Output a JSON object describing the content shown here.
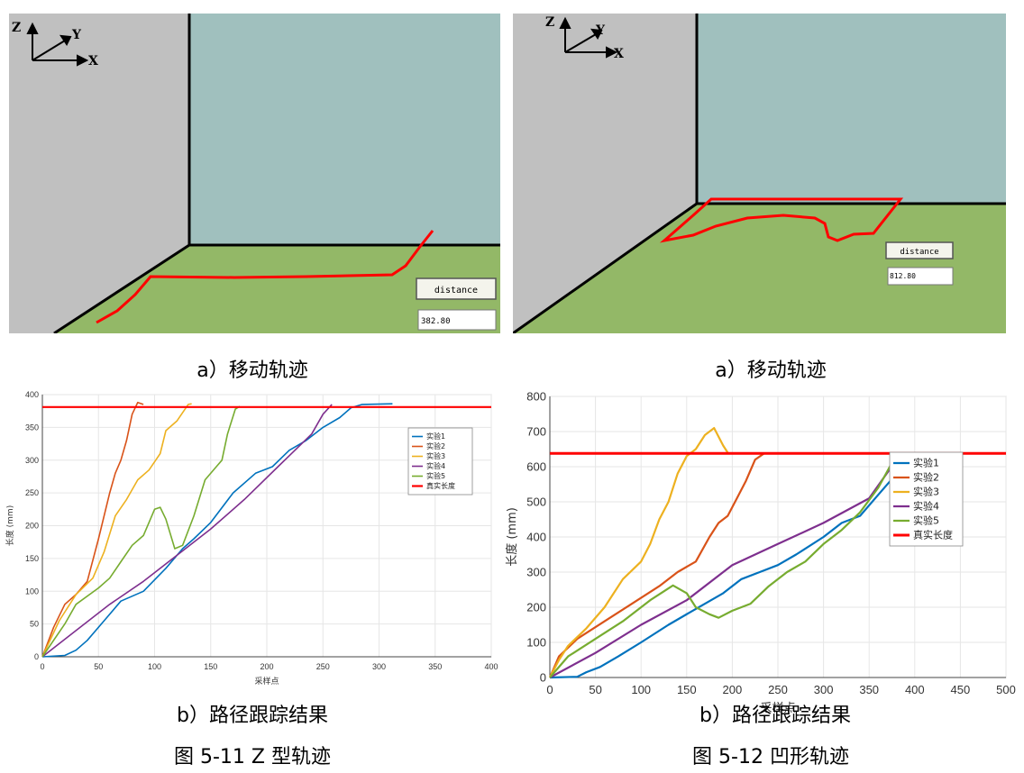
{
  "captions": {
    "left_scene": "a）移动轨迹",
    "right_scene": "a）移动轨迹",
    "left_plot": "b）路径跟踪结果",
    "right_plot": "b）路径跟踪结果",
    "left_figure": "图 5-11 Z 型轨迹",
    "right_figure": "图 5-12  凹形轨迹"
  },
  "scenes": [
    {
      "axes": {
        "z": "Z",
        "y": "Y",
        "x": "X"
      },
      "button_label": "distance",
      "value": "382.80"
    },
    {
      "axes": {
        "z": "Z",
        "y": "Y",
        "x": "X"
      },
      "button_label": "distance",
      "value": "812.80"
    }
  ],
  "colors": {
    "wall_left": "#c0c0c0",
    "wall_back": "#a0c0be",
    "floor": "#93b867",
    "path": "#ff0000",
    "s1": "#0072bd",
    "s2": "#d95319",
    "s3": "#edb120",
    "s4": "#7e2f8e",
    "s5": "#77ac30",
    "truth": "#ff0000"
  },
  "chart_data": [
    {
      "type": "line",
      "xlabel": "采样点",
      "ylabel": "长度 (mm)",
      "xlim": [
        0,
        400
      ],
      "ylim": [
        0,
        400
      ],
      "xticks": [
        "0",
        "50",
        "100",
        "150",
        "200",
        "250",
        "300",
        "350",
        "400"
      ],
      "yticks": [
        "0",
        "50",
        "100",
        "150",
        "200",
        "250",
        "300",
        "350",
        "400"
      ],
      "legend": [
        "实验1",
        "实验2",
        "实验3",
        "实验4",
        "实验5",
        "真实长度"
      ],
      "series": [
        {
          "name": "实验1",
          "points": [
            [
              0,
              0
            ],
            [
              20,
              2
            ],
            [
              30,
              10
            ],
            [
              40,
              25
            ],
            [
              55,
              55
            ],
            [
              70,
              85
            ],
            [
              90,
              100
            ],
            [
              110,
              135
            ],
            [
              125,
              165
            ],
            [
              135,
              180
            ],
            [
              150,
              205
            ],
            [
              170,
              250
            ],
            [
              190,
              280
            ],
            [
              205,
              290
            ],
            [
              220,
              315
            ],
            [
              235,
              330
            ],
            [
              250,
              350
            ],
            [
              265,
              365
            ],
            [
              275,
              380
            ],
            [
              285,
              385
            ],
            [
              312,
              386
            ]
          ]
        },
        {
          "name": "实验2",
          "points": [
            [
              0,
              0
            ],
            [
              10,
              45
            ],
            [
              20,
              80
            ],
            [
              30,
              95
            ],
            [
              40,
              115
            ],
            [
              50,
              180
            ],
            [
              60,
              250
            ],
            [
              65,
              280
            ],
            [
              70,
              300
            ],
            [
              75,
              330
            ],
            [
              80,
              370
            ],
            [
              85,
              388
            ],
            [
              90,
              385
            ]
          ]
        },
        {
          "name": "实验3",
          "points": [
            [
              0,
              0
            ],
            [
              15,
              55
            ],
            [
              30,
              95
            ],
            [
              45,
              120
            ],
            [
              55,
              160
            ],
            [
              65,
              215
            ],
            [
              75,
              240
            ],
            [
              85,
              270
            ],
            [
              95,
              285
            ],
            [
              105,
              310
            ],
            [
              110,
              345
            ],
            [
              120,
              360
            ],
            [
              130,
              385
            ],
            [
              133,
              386
            ]
          ]
        },
        {
          "name": "实验4",
          "points": [
            [
              0,
              0
            ],
            [
              30,
              40
            ],
            [
              60,
              80
            ],
            [
              90,
              115
            ],
            [
              120,
              155
            ],
            [
              150,
              195
            ],
            [
              180,
              240
            ],
            [
              210,
              290
            ],
            [
              240,
              340
            ],
            [
              250,
              370
            ],
            [
              258,
              385
            ]
          ]
        },
        {
          "name": "实验5",
          "points": [
            [
              0,
              0
            ],
            [
              20,
              50
            ],
            [
              30,
              80
            ],
            [
              50,
              105
            ],
            [
              60,
              120
            ],
            [
              70,
              145
            ],
            [
              80,
              170
            ],
            [
              90,
              185
            ],
            [
              95,
              205
            ],
            [
              100,
              225
            ],
            [
              105,
              228
            ],
            [
              110,
              210
            ],
            [
              118,
              165
            ],
            [
              125,
              170
            ],
            [
              135,
              215
            ],
            [
              145,
              270
            ],
            [
              155,
              290
            ],
            [
              160,
              300
            ],
            [
              165,
              340
            ],
            [
              172,
              378
            ],
            [
              176,
              382
            ]
          ]
        },
        {
          "name": "真实长度",
          "points": [
            [
              0,
              381
            ],
            [
              400,
              381
            ]
          ]
        }
      ]
    },
    {
      "type": "line",
      "xlabel": "采样点",
      "ylabel": "长度 (mm)",
      "xlim": [
        0,
        500
      ],
      "ylim": [
        0,
        800
      ],
      "xticks": [
        "0",
        "50",
        "100",
        "150",
        "200",
        "250",
        "300",
        "350",
        "400",
        "450",
        "500"
      ],
      "yticks": [
        "0",
        "100",
        "200",
        "300",
        "400",
        "500",
        "600",
        "700",
        "800"
      ],
      "legend": [
        "实验1",
        "实验2",
        "实验3",
        "实验4",
        "实验5",
        "真实长度"
      ],
      "series": [
        {
          "name": "实验1",
          "points": [
            [
              0,
              0
            ],
            [
              30,
              2
            ],
            [
              40,
              15
            ],
            [
              55,
              30
            ],
            [
              75,
              60
            ],
            [
              100,
              100
            ],
            [
              130,
              150
            ],
            [
              160,
              195
            ],
            [
              190,
              240
            ],
            [
              210,
              280
            ],
            [
              230,
              300
            ],
            [
              250,
              320
            ],
            [
              270,
              350
            ],
            [
              300,
              400
            ],
            [
              320,
              440
            ],
            [
              340,
              460
            ],
            [
              360,
              520
            ],
            [
              380,
              580
            ],
            [
              400,
              635
            ],
            [
              405,
              638
            ]
          ]
        },
        {
          "name": "实验2",
          "points": [
            [
              0,
              0
            ],
            [
              10,
              60
            ],
            [
              30,
              110
            ],
            [
              60,
              160
            ],
            [
              90,
              210
            ],
            [
              120,
              260
            ],
            [
              140,
              300
            ],
            [
              160,
              330
            ],
            [
              175,
              400
            ],
            [
              185,
              440
            ],
            [
              195,
              460
            ],
            [
              205,
              510
            ],
            [
              215,
              560
            ],
            [
              225,
              620
            ],
            [
              235,
              638
            ]
          ]
        },
        {
          "name": "实验3",
          "points": [
            [
              0,
              0
            ],
            [
              10,
              50
            ],
            [
              20,
              90
            ],
            [
              40,
              140
            ],
            [
              60,
              200
            ],
            [
              80,
              280
            ],
            [
              100,
              330
            ],
            [
              110,
              380
            ],
            [
              120,
              450
            ],
            [
              130,
              500
            ],
            [
              140,
              580
            ],
            [
              150,
              630
            ],
            [
              160,
              650
            ],
            [
              170,
              690
            ],
            [
              180,
              710
            ],
            [
              190,
              660
            ],
            [
              195,
              640
            ]
          ]
        },
        {
          "name": "实验4",
          "points": [
            [
              0,
              0
            ],
            [
              50,
              70
            ],
            [
              100,
              150
            ],
            [
              150,
              220
            ],
            [
              200,
              320
            ],
            [
              250,
              380
            ],
            [
              300,
              440
            ],
            [
              350,
              510
            ],
            [
              385,
              638
            ]
          ]
        },
        {
          "name": "实验5",
          "points": [
            [
              0,
              0
            ],
            [
              20,
              60
            ],
            [
              50,
              110
            ],
            [
              80,
              160
            ],
            [
              110,
              220
            ],
            [
              135,
              262
            ],
            [
              150,
              240
            ],
            [
              160,
              200
            ],
            [
              175,
              180
            ],
            [
              185,
              170
            ],
            [
              200,
              190
            ],
            [
              220,
              210
            ],
            [
              240,
              260
            ],
            [
              260,
              300
            ],
            [
              280,
              330
            ],
            [
              300,
              380
            ],
            [
              320,
              420
            ],
            [
              340,
              470
            ],
            [
              360,
              540
            ],
            [
              380,
              635
            ]
          ]
        },
        {
          "name": "真实长度",
          "points": [
            [
              0,
              638
            ],
            [
              500,
              638
            ]
          ]
        }
      ]
    }
  ]
}
